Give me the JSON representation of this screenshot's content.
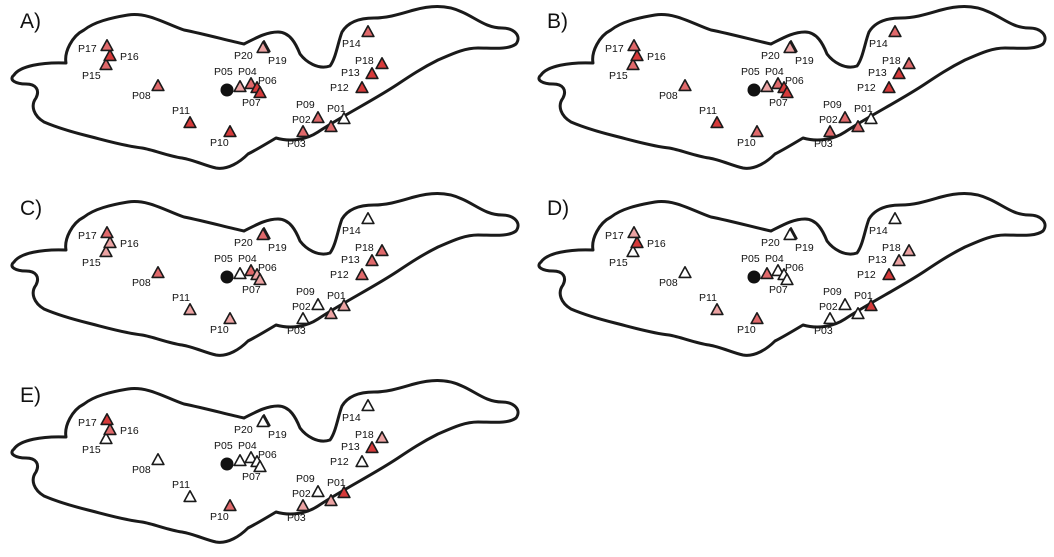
{
  "legend_colors": {
    "dark": "#d63a3a",
    "mid": "#e0696b",
    "light": "#eca3a3",
    "white": "#ffffff",
    "outline": "#1a1a1a",
    "center": "#111111"
  },
  "sites": [
    "P01",
    "P02",
    "P03",
    "P04",
    "P05",
    "P06",
    "P07",
    "P08",
    "P09",
    "P10",
    "P11",
    "P12",
    "P13",
    "P14",
    "P15",
    "P16",
    "P17",
    "P18",
    "P19",
    "P20"
  ],
  "panels": [
    {
      "label": "A)",
      "markers": {
        "P01": "white",
        "P02": "mid",
        "P03": "mid",
        "P04": "mid",
        "P05": "light",
        "P06": "dark",
        "P07": "dark",
        "P08": "mid",
        "P09": "mid",
        "P10": "dark",
        "P11": "dark",
        "P12": "dark",
        "P13": "dark",
        "P14": "mid",
        "P15": "mid",
        "P16": "dark",
        "P17": "mid",
        "P18": "dark",
        "P19": "light",
        "P20": "light"
      }
    },
    {
      "label": "B)",
      "markers": {
        "P01": "white",
        "P02": "mid",
        "P03": "mid",
        "P04": "mid",
        "P05": "light",
        "P06": "dark",
        "P07": "dark",
        "P08": "mid",
        "P09": "mid",
        "P10": "mid",
        "P11": "dark",
        "P12": "dark",
        "P13": "dark",
        "P14": "mid",
        "P15": "mid",
        "P16": "dark",
        "P17": "mid",
        "P18": "mid",
        "P19": "light",
        "P20": "light"
      }
    },
    {
      "label": "C)",
      "markers": {
        "P01": "light",
        "P02": "white",
        "P03": "white",
        "P04": "mid",
        "P05": "white",
        "P06": "light",
        "P07": "light",
        "P08": "mid",
        "P09": "light",
        "P10": "light",
        "P11": "light",
        "P12": "mid",
        "P13": "mid",
        "P14": "white",
        "P15": "light",
        "P16": "light",
        "P17": "mid",
        "P18": "mid",
        "P19": "mid",
        "P20": "mid"
      }
    },
    {
      "label": "D)",
      "markers": {
        "P01": "dark",
        "P02": "white",
        "P03": "white",
        "P04": "white",
        "P05": "mid",
        "P06": "white",
        "P07": "white",
        "P08": "white",
        "P09": "white",
        "P10": "mid",
        "P11": "light",
        "P12": "dark",
        "P13": "light",
        "P14": "white",
        "P15": "white",
        "P16": "dark",
        "P17": "light",
        "P18": "light",
        "P19": "white",
        "P20": "white"
      }
    },
    {
      "label": "E)",
      "markers": {
        "P01": "dark",
        "P02": "white",
        "P03": "light",
        "P04": "white",
        "P05": "white",
        "P06": "white",
        "P07": "white",
        "P08": "white",
        "P09": "light",
        "P10": "mid",
        "P11": "white",
        "P12": "white",
        "P13": "dark",
        "P14": "white",
        "P15": "white",
        "P16": "mid",
        "P17": "dark",
        "P18": "light",
        "P19": "white",
        "P20": "white"
      }
    }
  ]
}
